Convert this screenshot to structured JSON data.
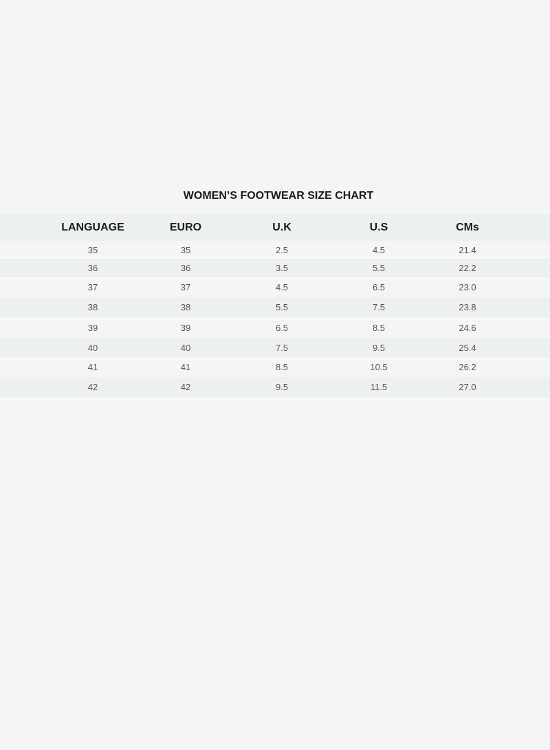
{
  "title": "WOMEN’S FOOTWEAR SIZE CHART",
  "table": {
    "headers": [
      "LANGUAGE",
      "EURO",
      "U.K",
      "U.S",
      "CMs"
    ],
    "rows": [
      [
        "35",
        "35",
        "2.5",
        "4.5",
        "21.4"
      ],
      [
        "36",
        "36",
        "3.5",
        "5.5",
        "22.2"
      ],
      [
        "37",
        "37",
        "4.5",
        "6.5",
        "23.0"
      ],
      [
        "38",
        "38",
        "5.5",
        "7.5",
        "23.8"
      ],
      [
        "39",
        "39",
        "6.5",
        "8.5",
        "24.6"
      ],
      [
        "40",
        "40",
        "7.5",
        "9.5",
        "25.4"
      ],
      [
        "41",
        "41",
        "8.5",
        "10.5",
        "26.2"
      ],
      [
        "42",
        "42",
        "9.5",
        "11.5",
        "27.0"
      ]
    ]
  },
  "colors": {
    "background": "#f5f5f5",
    "stripe": "#edf0f1"
  }
}
